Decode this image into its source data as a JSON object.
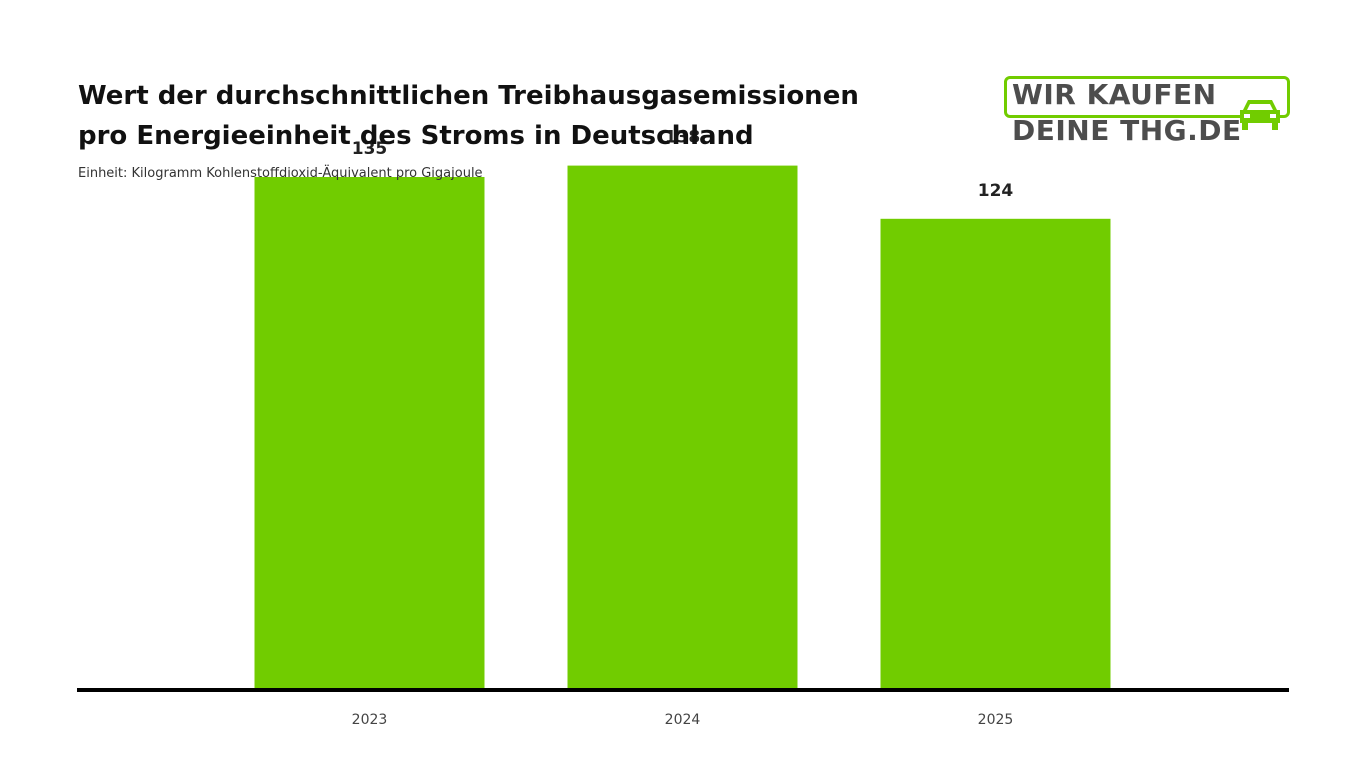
{
  "header": {
    "title_line1": "Wert der durchschnittlichen Treibhausgasemissionen",
    "title_line2": "pro Energieeinheit des Stroms in Deutschland",
    "subtitle": "Einheit: Kilogramm Kohlenstoffdioxid-Äquivalent pro Gigajoule"
  },
  "logo": {
    "line1": "WIR KAUFEN",
    "line2": "DEINE THG.DE",
    "icon": "car-icon"
  },
  "colors": {
    "bar": "#71cc00",
    "axis": "#000000",
    "brand_green": "#71cc00",
    "brand_gray": "#4d4d4d"
  },
  "chart_data": {
    "type": "bar",
    "title": "Wert der durchschnittlichen Treibhausgasemissionen pro Energieeinheit des Stroms in Deutschland",
    "subtitle": "Einheit: Kilogramm Kohlenstoffdioxid-Äquivalent pro Gigajoule",
    "categories": [
      "2023",
      "2024",
      "2025"
    ],
    "values": [
      135,
      138,
      124
    ],
    "data_labels": [
      "135",
      "138",
      "124"
    ],
    "xlabel": "",
    "ylabel": "",
    "ylim": [
      0,
      150
    ],
    "grid": false,
    "legend": "none"
  }
}
